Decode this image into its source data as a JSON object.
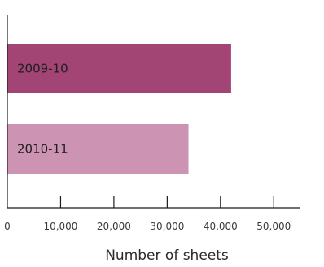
{
  "chart_data": {
    "type": "bar",
    "orientation": "horizontal",
    "categories": [
      "2009-10",
      "2010-11"
    ],
    "values": [
      42000,
      34000
    ],
    "bar_colors": [
      "#a24474",
      "#cd93b3"
    ],
    "xlabel": "Number of sheets",
    "ylabel": "",
    "xlim": [
      0,
      55000
    ],
    "x_ticks": [
      0,
      10000,
      20000,
      30000,
      40000,
      50000
    ],
    "x_tick_labels": [
      "0",
      "10,000",
      "20,000",
      "30,000",
      "40,000",
      "50,000"
    ],
    "grid": false,
    "axis_color": "#1a1a1a"
  }
}
